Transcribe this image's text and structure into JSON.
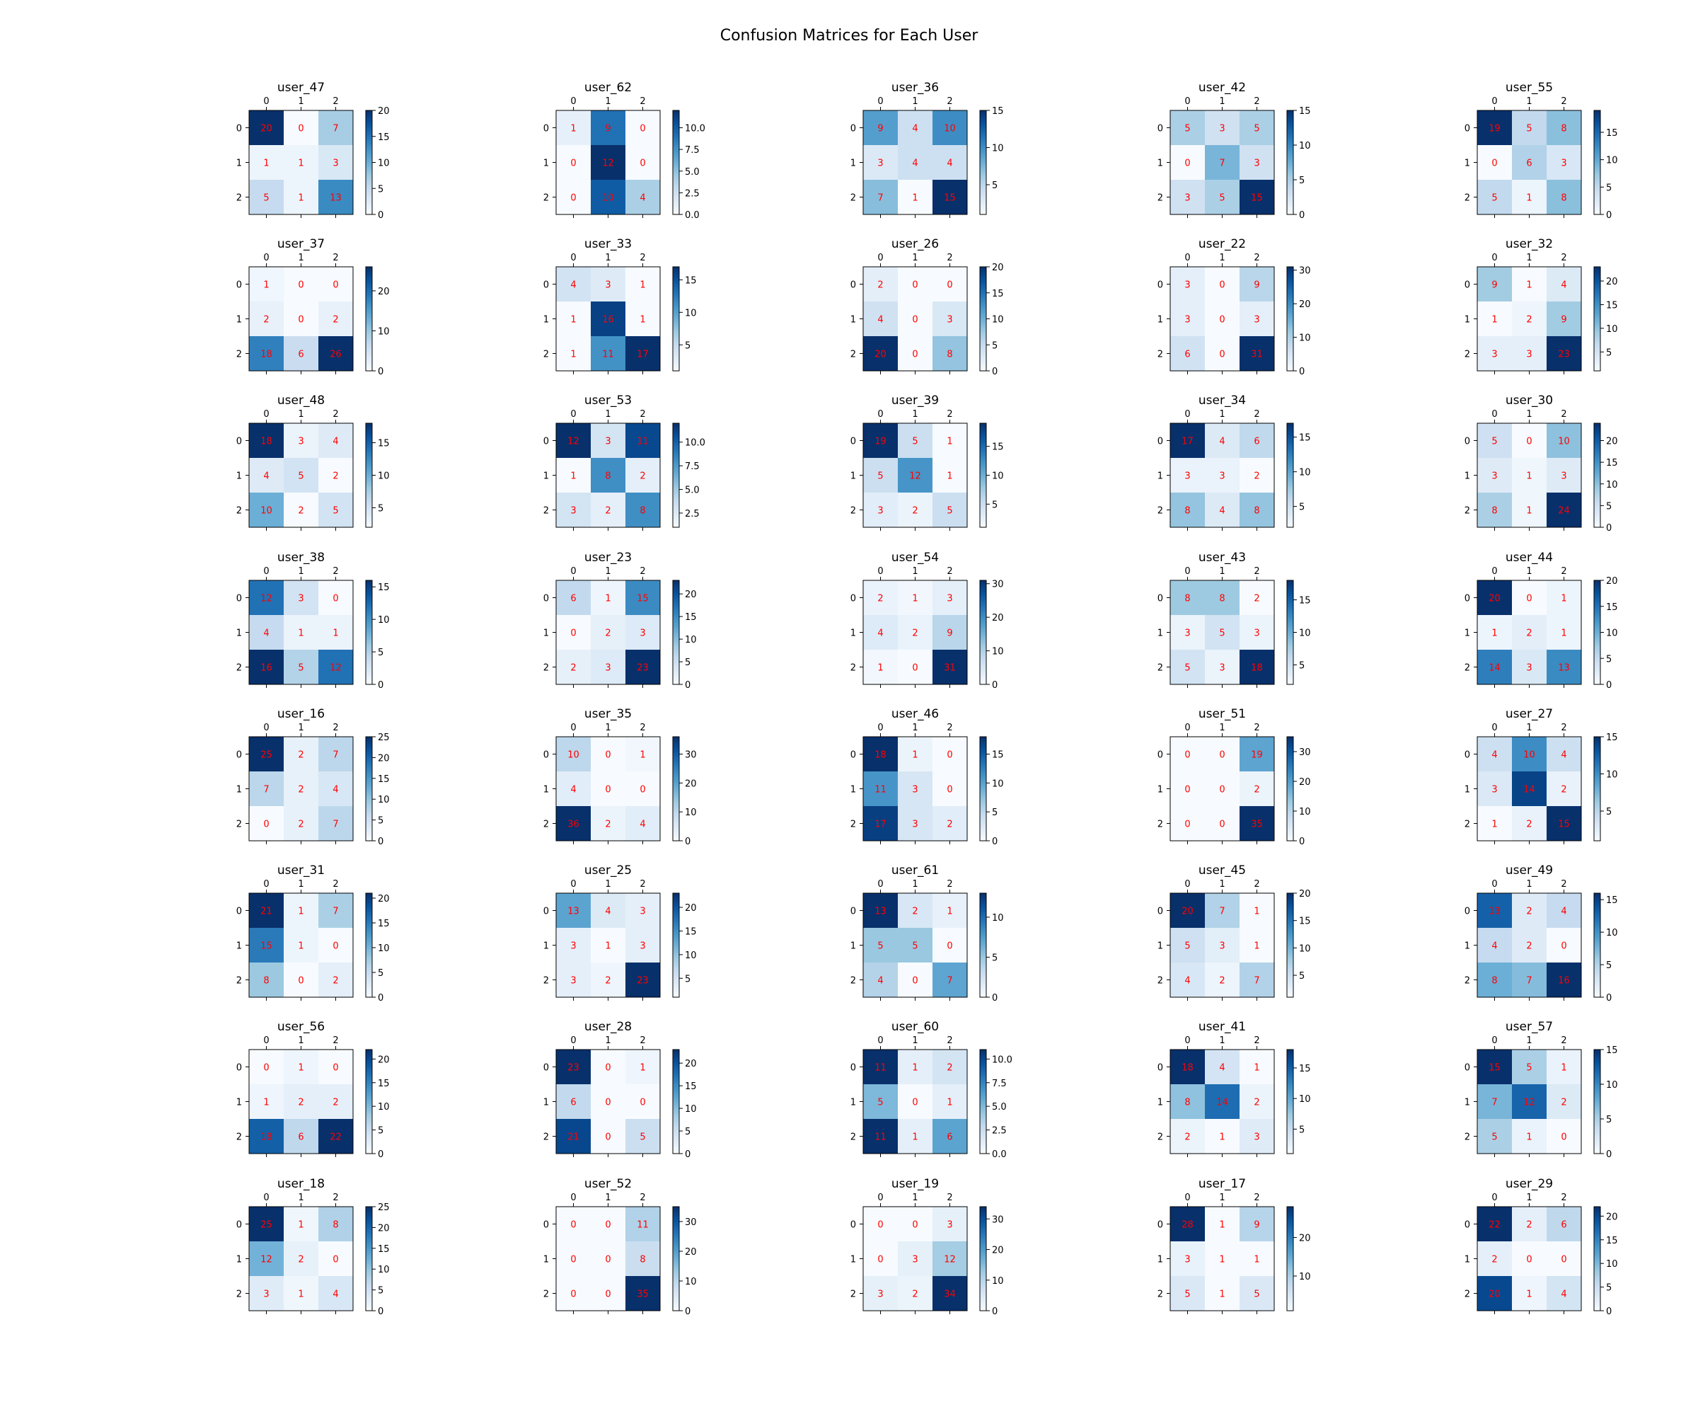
{
  "chart_data": {
    "type": "heatmap",
    "title": "Confusion Matrices for Each User",
    "colormap": "Blues",
    "annotation_color": "#ff0000",
    "tick_labels": [
      "0",
      "1",
      "2"
    ],
    "panels": [
      {
        "title": "user_47",
        "matrix": [
          [
            20,
            0,
            7
          ],
          [
            1,
            1,
            3
          ],
          [
            5,
            1,
            13
          ]
        ],
        "colorbar_ticks": [
          "0",
          "5",
          "10",
          "15",
          "20"
        ],
        "vmin": 0,
        "vmax": 20
      },
      {
        "title": "user_62",
        "matrix": [
          [
            1,
            9,
            0
          ],
          [
            0,
            12,
            0
          ],
          [
            0,
            10,
            4
          ]
        ],
        "colorbar_ticks": [
          "0.0",
          "2.5",
          "5.0",
          "7.5",
          "10.0"
        ],
        "vmin": 0,
        "vmax": 12
      },
      {
        "title": "user_36",
        "matrix": [
          [
            9,
            4,
            10
          ],
          [
            3,
            4,
            4
          ],
          [
            7,
            1,
            15
          ]
        ],
        "colorbar_ticks": [
          "5",
          "10",
          "15"
        ],
        "vmin": 1,
        "vmax": 15
      },
      {
        "title": "user_42",
        "matrix": [
          [
            5,
            3,
            5
          ],
          [
            0,
            7,
            3
          ],
          [
            3,
            5,
            15
          ]
        ],
        "colorbar_ticks": [
          "0",
          "5",
          "10",
          "15"
        ],
        "vmin": 0,
        "vmax": 15
      },
      {
        "title": "user_55",
        "matrix": [
          [
            19,
            5,
            8
          ],
          [
            0,
            6,
            3
          ],
          [
            5,
            1,
            8
          ]
        ],
        "colorbar_ticks": [
          "0",
          "5",
          "10",
          "15"
        ],
        "vmin": 0,
        "vmax": 19
      },
      {
        "title": "user_37",
        "matrix": [
          [
            1,
            0,
            0
          ],
          [
            2,
            0,
            2
          ],
          [
            18,
            6,
            26
          ]
        ],
        "colorbar_ticks": [
          "0",
          "10",
          "20"
        ],
        "vmin": 0,
        "vmax": 26
      },
      {
        "title": "user_33",
        "matrix": [
          [
            4,
            3,
            1
          ],
          [
            1,
            16,
            1
          ],
          [
            1,
            11,
            17
          ]
        ],
        "colorbar_ticks": [
          "5",
          "10",
          "15"
        ],
        "vmin": 1,
        "vmax": 17
      },
      {
        "title": "user_26",
        "matrix": [
          [
            2,
            0,
            0
          ],
          [
            4,
            0,
            3
          ],
          [
            20,
            0,
            8
          ]
        ],
        "colorbar_ticks": [
          "0",
          "5",
          "10",
          "15",
          "20"
        ],
        "vmin": 0,
        "vmax": 20
      },
      {
        "title": "user_22",
        "matrix": [
          [
            3,
            0,
            9
          ],
          [
            3,
            0,
            3
          ],
          [
            6,
            0,
            31
          ]
        ],
        "colorbar_ticks": [
          "0",
          "10",
          "20",
          "30"
        ],
        "vmin": 0,
        "vmax": 31
      },
      {
        "title": "user_32",
        "matrix": [
          [
            9,
            1,
            4
          ],
          [
            1,
            2,
            9
          ],
          [
            3,
            3,
            23
          ]
        ],
        "colorbar_ticks": [
          "5",
          "10",
          "15",
          "20"
        ],
        "vmin": 1,
        "vmax": 23
      },
      {
        "title": "user_48",
        "matrix": [
          [
            18,
            3,
            4
          ],
          [
            4,
            5,
            2
          ],
          [
            10,
            2,
            5
          ]
        ],
        "colorbar_ticks": [
          "5",
          "10",
          "15"
        ],
        "vmin": 2,
        "vmax": 18
      },
      {
        "title": "user_53",
        "matrix": [
          [
            12,
            3,
            11
          ],
          [
            1,
            8,
            2
          ],
          [
            3,
            2,
            8
          ]
        ],
        "colorbar_ticks": [
          "2.5",
          "5.0",
          "7.5",
          "10.0"
        ],
        "vmin": 1,
        "vmax": 12
      },
      {
        "title": "user_39",
        "matrix": [
          [
            19,
            5,
            1
          ],
          [
            5,
            12,
            1
          ],
          [
            3,
            2,
            5
          ]
        ],
        "colorbar_ticks": [
          "5",
          "10",
          "15"
        ],
        "vmin": 1,
        "vmax": 19
      },
      {
        "title": "user_34",
        "matrix": [
          [
            17,
            4,
            6
          ],
          [
            3,
            3,
            2
          ],
          [
            8,
            4,
            8
          ]
        ],
        "colorbar_ticks": [
          "5",
          "10",
          "15"
        ],
        "vmin": 2,
        "vmax": 17
      },
      {
        "title": "user_30",
        "matrix": [
          [
            5,
            0,
            10
          ],
          [
            3,
            1,
            3
          ],
          [
            8,
            1,
            24
          ]
        ],
        "colorbar_ticks": [
          "0",
          "5",
          "10",
          "15",
          "20"
        ],
        "vmin": 0,
        "vmax": 24
      },
      {
        "title": "user_38",
        "matrix": [
          [
            12,
            3,
            0
          ],
          [
            4,
            1,
            1
          ],
          [
            16,
            5,
            12
          ]
        ],
        "colorbar_ticks": [
          "0",
          "5",
          "10",
          "15"
        ],
        "vmin": 0,
        "vmax": 16
      },
      {
        "title": "user_23",
        "matrix": [
          [
            6,
            1,
            15
          ],
          [
            0,
            2,
            3
          ],
          [
            2,
            3,
            23
          ]
        ],
        "colorbar_ticks": [
          "0",
          "5",
          "10",
          "15",
          "20"
        ],
        "vmin": 0,
        "vmax": 23
      },
      {
        "title": "user_54",
        "matrix": [
          [
            2,
            1,
            3
          ],
          [
            4,
            2,
            9
          ],
          [
            1,
            0,
            31
          ]
        ],
        "colorbar_ticks": [
          "0",
          "10",
          "20",
          "30"
        ],
        "vmin": 0,
        "vmax": 31
      },
      {
        "title": "user_43",
        "matrix": [
          [
            8,
            8,
            2
          ],
          [
            3,
            5,
            3
          ],
          [
            5,
            3,
            18
          ]
        ],
        "colorbar_ticks": [
          "5",
          "10",
          "15"
        ],
        "vmin": 2,
        "vmax": 18
      },
      {
        "title": "user_44",
        "matrix": [
          [
            20,
            0,
            1
          ],
          [
            1,
            2,
            1
          ],
          [
            14,
            3,
            13
          ]
        ],
        "colorbar_ticks": [
          "0",
          "5",
          "10",
          "15",
          "20"
        ],
        "vmin": 0,
        "vmax": 20
      },
      {
        "title": "user_16",
        "matrix": [
          [
            25,
            2,
            7
          ],
          [
            7,
            2,
            4
          ],
          [
            0,
            2,
            7
          ]
        ],
        "colorbar_ticks": [
          "0",
          "5",
          "10",
          "15",
          "20",
          "25"
        ],
        "vmin": 0,
        "vmax": 25
      },
      {
        "title": "user_35",
        "matrix": [
          [
            10,
            0,
            1
          ],
          [
            4,
            0,
            0
          ],
          [
            36,
            2,
            4
          ]
        ],
        "colorbar_ticks": [
          "0",
          "10",
          "20",
          "30"
        ],
        "vmin": 0,
        "vmax": 36
      },
      {
        "title": "user_46",
        "matrix": [
          [
            18,
            1,
            0
          ],
          [
            11,
            3,
            0
          ],
          [
            17,
            3,
            2
          ]
        ],
        "colorbar_ticks": [
          "0",
          "5",
          "10",
          "15"
        ],
        "vmin": 0,
        "vmax": 18
      },
      {
        "title": "user_51",
        "matrix": [
          [
            0,
            0,
            19
          ],
          [
            0,
            0,
            2
          ],
          [
            0,
            0,
            35
          ]
        ],
        "colorbar_ticks": [
          "0",
          "10",
          "20",
          "30"
        ],
        "vmin": 0,
        "vmax": 35
      },
      {
        "title": "user_27",
        "matrix": [
          [
            4,
            10,
            4
          ],
          [
            3,
            14,
            2
          ],
          [
            1,
            2,
            15
          ]
        ],
        "colorbar_ticks": [
          "5",
          "10",
          "15"
        ],
        "vmin": 1,
        "vmax": 15
      },
      {
        "title": "user_31",
        "matrix": [
          [
            21,
            1,
            7
          ],
          [
            15,
            1,
            0
          ],
          [
            8,
            0,
            2
          ]
        ],
        "colorbar_ticks": [
          "0",
          "5",
          "10",
          "15",
          "20"
        ],
        "vmin": 0,
        "vmax": 21
      },
      {
        "title": "user_25",
        "matrix": [
          [
            13,
            4,
            3
          ],
          [
            3,
            1,
            3
          ],
          [
            3,
            2,
            23
          ]
        ],
        "colorbar_ticks": [
          "5",
          "10",
          "15",
          "20"
        ],
        "vmin": 1,
        "vmax": 23
      },
      {
        "title": "user_61",
        "matrix": [
          [
            13,
            2,
            1
          ],
          [
            5,
            5,
            0
          ],
          [
            4,
            0,
            7
          ]
        ],
        "colorbar_ticks": [
          "0",
          "5",
          "10"
        ],
        "vmin": 0,
        "vmax": 13
      },
      {
        "title": "user_45",
        "matrix": [
          [
            20,
            7,
            1
          ],
          [
            5,
            3,
            1
          ],
          [
            4,
            2,
            7
          ]
        ],
        "colorbar_ticks": [
          "5",
          "10",
          "15",
          "20"
        ],
        "vmin": 1,
        "vmax": 20
      },
      {
        "title": "user_49",
        "matrix": [
          [
            13,
            2,
            4
          ],
          [
            4,
            2,
            0
          ],
          [
            8,
            7,
            16
          ]
        ],
        "colorbar_ticks": [
          "0",
          "5",
          "10",
          "15"
        ],
        "vmin": 0,
        "vmax": 16
      },
      {
        "title": "user_56",
        "matrix": [
          [
            0,
            1,
            0
          ],
          [
            1,
            2,
            2
          ],
          [
            18,
            6,
            22
          ]
        ],
        "colorbar_ticks": [
          "0",
          "5",
          "10",
          "15",
          "20"
        ],
        "vmin": 0,
        "vmax": 22
      },
      {
        "title": "user_28",
        "matrix": [
          [
            23,
            0,
            1
          ],
          [
            6,
            0,
            0
          ],
          [
            21,
            0,
            5
          ]
        ],
        "colorbar_ticks": [
          "0",
          "5",
          "10",
          "15",
          "20"
        ],
        "vmin": 0,
        "vmax": 23
      },
      {
        "title": "user_60",
        "matrix": [
          [
            11,
            1,
            2
          ],
          [
            5,
            0,
            1
          ],
          [
            11,
            1,
            6
          ]
        ],
        "colorbar_ticks": [
          "0.0",
          "2.5",
          "5.0",
          "7.5",
          "10.0"
        ],
        "vmin": 0,
        "vmax": 11
      },
      {
        "title": "user_41",
        "matrix": [
          [
            18,
            4,
            1
          ],
          [
            8,
            14,
            2
          ],
          [
            2,
            1,
            3
          ]
        ],
        "colorbar_ticks": [
          "5",
          "10",
          "15"
        ],
        "vmin": 1,
        "vmax": 18
      },
      {
        "title": "user_57",
        "matrix": [
          [
            15,
            5,
            1
          ],
          [
            7,
            12,
            2
          ],
          [
            5,
            1,
            0
          ]
        ],
        "colorbar_ticks": [
          "0",
          "5",
          "10",
          "15"
        ],
        "vmin": 0,
        "vmax": 15
      },
      {
        "title": "user_18",
        "matrix": [
          [
            25,
            1,
            8
          ],
          [
            12,
            2,
            0
          ],
          [
            3,
            1,
            4
          ]
        ],
        "colorbar_ticks": [
          "0",
          "5",
          "10",
          "15",
          "20",
          "25"
        ],
        "vmin": 0,
        "vmax": 25
      },
      {
        "title": "user_52",
        "matrix": [
          [
            0,
            0,
            11
          ],
          [
            0,
            0,
            8
          ],
          [
            0,
            0,
            35
          ]
        ],
        "colorbar_ticks": [
          "0",
          "10",
          "20",
          "30"
        ],
        "vmin": 0,
        "vmax": 35
      },
      {
        "title": "user_19",
        "matrix": [
          [
            0,
            0,
            3
          ],
          [
            0,
            3,
            12
          ],
          [
            3,
            2,
            34
          ]
        ],
        "colorbar_ticks": [
          "0",
          "10",
          "20",
          "30"
        ],
        "vmin": 0,
        "vmax": 34
      },
      {
        "title": "user_17",
        "matrix": [
          [
            28,
            1,
            9
          ],
          [
            3,
            1,
            1
          ],
          [
            5,
            1,
            5
          ]
        ],
        "colorbar_ticks": [
          "10",
          "20"
        ],
        "vmin": 1,
        "vmax": 28
      },
      {
        "title": "user_29",
        "matrix": [
          [
            22,
            2,
            6
          ],
          [
            2,
            0,
            0
          ],
          [
            20,
            1,
            4
          ]
        ],
        "colorbar_ticks": [
          "0",
          "5",
          "10",
          "15",
          "20"
        ],
        "vmin": 0,
        "vmax": 22
      }
    ]
  }
}
